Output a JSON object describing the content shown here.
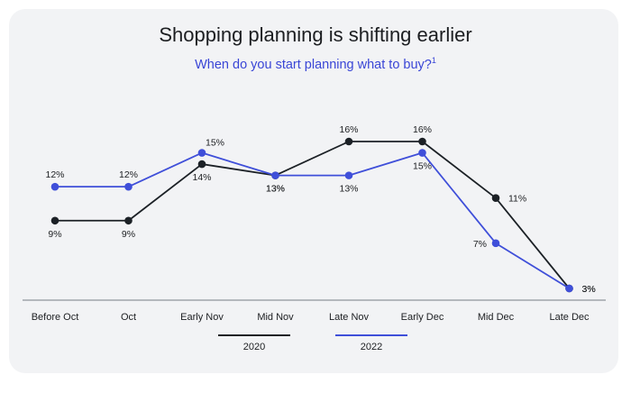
{
  "title": "Shopping planning is shifting earlier",
  "subtitle": "When do you start planning what to buy?",
  "subtitle_footnote": "1",
  "chart_data": {
    "type": "line",
    "categories": [
      "Before Oct",
      "Oct",
      "Early Nov",
      "Mid Nov",
      "Late Nov",
      "Early Dec",
      "Mid Dec",
      "Late Dec"
    ],
    "series": [
      {
        "name": "2020",
        "color": "#1c2126",
        "values": [
          9,
          9,
          14,
          13,
          16,
          16,
          11,
          3
        ]
      },
      {
        "name": "2022",
        "color": "#3f4fd9",
        "values": [
          12,
          12,
          15,
          13,
          13,
          15,
          7,
          3
        ]
      }
    ],
    "value_format": "%",
    "ylim": [
      3,
      16
    ],
    "grid": false,
    "legend_position": "bottom"
  }
}
